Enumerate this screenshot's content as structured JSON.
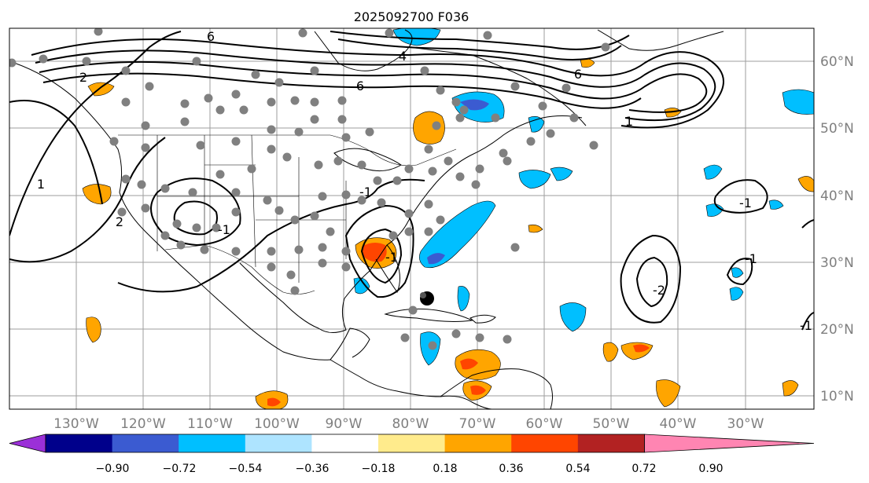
{
  "title": "2025092700 F036",
  "map": {
    "lon_labels": [
      "130°W",
      "120°W",
      "110°W",
      "100°W",
      "90°W",
      "80°W",
      "70°W",
      "60°W",
      "50°W",
      "40°W",
      "30°W"
    ],
    "lat_labels": [
      "60°N",
      "50°N",
      "40°N",
      "30°N",
      "20°N",
      "10°N"
    ],
    "contour_labels": [
      "6",
      "6",
      "6",
      "4",
      "2",
      "2",
      "1",
      "1",
      "-1",
      "-1",
      "-1",
      "-2",
      "-1",
      "-1",
      "-1"
    ],
    "colors": {
      "land": "#ffffff",
      "coast": "#000000",
      "grid": "#9e9e9e",
      "contour": "#000000",
      "station": "#808080"
    }
  },
  "colorbar": {
    "ticks": [
      "−0.90",
      "−0.72",
      "−0.54",
      "−0.36",
      "−0.18",
      "0.18",
      "0.36",
      "0.54",
      "0.72",
      "0.90"
    ],
    "colors": [
      "#9b30d8",
      "#00008b",
      "#3b5bd1",
      "#00bfff",
      "#aee4ff",
      "#ffffff",
      "#ffeb8c",
      "#ffa500",
      "#ff4500",
      "#b22222",
      "#ff85b2"
    ]
  }
}
